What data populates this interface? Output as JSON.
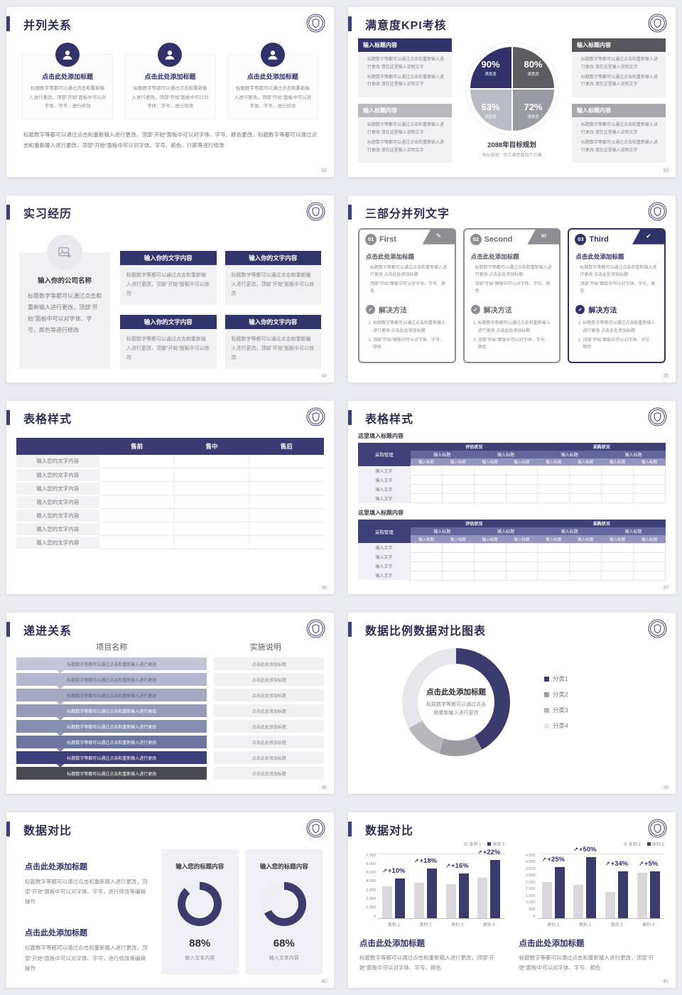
{
  "theme": {
    "navy": "#3b3b6e",
    "navy_dark": "#32326b",
    "title_color": "#2e2e55",
    "accent_bar": "#3f3f77",
    "bar_gray": "#d9d9dd",
    "donut_rest": "#ededf2",
    "page_bg": "#eaecf0",
    "card_bg": "#f1f1f4",
    "check_glyph": "✔",
    "arrow_glyph": "↗"
  },
  "slide32": {
    "title": "并列关系",
    "page": "32",
    "items": [
      {
        "icon": "person-headset-icon",
        "title": "点击此处添加标题",
        "body": "标题数字等都可以通过点击和重新输入进行更改，顶部“开始”面板中可以对字体、字号、进行修改"
      },
      {
        "icon": "person-icon",
        "title": "点击此处添加标题",
        "body": "标题数字等都可以通过点击和重新输入进行更改，顶部“开始”面板中可以对字体、字号、进行修改"
      },
      {
        "icon": "person-chat-icon",
        "title": "点击此处添加标题",
        "body": "标题数字等都可以通过点击和重新输入进行更改，顶部“开始”面板中可以对字体、字号、进行修改"
      }
    ],
    "footer": "标题数字等都可以通过点击和重新输入进行更改，顶部“开始”面板中可以对字体、字号、颜色更改，标题数字等都可以通过点击和重新输入进行更改，顶部“开始”面板中可以对字体、字号、颜色、行距等进行修改"
  },
  "slide33": {
    "title": "满意度KPI考核",
    "page": "33",
    "left_boxes": [
      {
        "header": "输入标题内容",
        "color": "#32326b",
        "bullets": [
          "标题数字等都可以通过点击和重新输入进行更改 请在这里输入说明文字",
          "标题数字等都可以通过点击和重新输入进行更改 请在这里输入说明文字"
        ]
      },
      {
        "header": "输入标题内容",
        "color": "#b9b9bf",
        "bullets": [
          "标题数字等都可以通过点击和重新输入进行更改 请在这里输入说明文字",
          "标题数字等都可以通过点击和重新输入进行更改 请在这里输入说明文字"
        ]
      }
    ],
    "right_boxes": [
      {
        "header": "输入标题内容",
        "color": "#58585c",
        "bullets": [
          "标题数字等都可以通过点击和重新输入进行更改 请在这里输入说明文字",
          "标题数字等都可以通过点击和重新输入进行更改 请在这里输入说明文字"
        ]
      },
      {
        "header": "输入标题内容",
        "color": "#a7a7ad",
        "bullets": [
          "标题数字等都可以通过点击和重新输入进行更改 请在这里输入说明文字",
          "标题数字等都可以通过点击和重新输入进行更改 请在这里输入说明文字"
        ]
      }
    ],
    "chart_data": {
      "type": "pie",
      "slices": [
        {
          "value": "90%",
          "label": "满意度",
          "pct": 25,
          "color": "#32326b"
        },
        {
          "value": "80%",
          "label": "满意度",
          "pct": 25,
          "color": "#5d5d61"
        },
        {
          "value": "63%",
          "label": "满意度",
          "pct": 25,
          "color": "#b9bcc4"
        },
        {
          "value": "72%",
          "label": "满意度",
          "pct": 25,
          "color": "#989ba4"
        }
      ]
    },
    "caption": "2088年目标规划",
    "subcaption": "目标规划：员工满意度四个方面"
  },
  "slide34": {
    "title": "实习经历",
    "page": "34",
    "company_title": "输入你的公司名称",
    "left_body": "标题数字等都可以通过点击和重新输入进行更改，顶部“开始”面板中可以对字体、字号、颜色等进行修改",
    "boxes": [
      {
        "header": "输入你的文字内容",
        "body": "标题数字等都可以通过点击和重新输入进行更改，顶部“开始”面板中可以修改"
      },
      {
        "header": "输入你的文字内容",
        "body": "标题数字等都可以通过点击和重新输入进行更改，顶部“开始”面板中可以修改"
      },
      {
        "header": "输入你的文字内容",
        "body": "标题数字等都可以通过点击和重新输入进行更改，顶部“开始”面板中可以修改"
      },
      {
        "header": "输入你的文字内容",
        "body": "标题数字等都可以通过点击和重新输入进行更改，顶部“开始”面板中可以修改"
      }
    ]
  },
  "slide35": {
    "title": "三部分并列文字",
    "page": "35",
    "cards": [
      {
        "num": "01",
        "name": "First",
        "glyph": "✎",
        "accent": "#8d8d93",
        "name_color": "#6b6b72",
        "heading_color": "#55555c",
        "heading": "点击此处添加标题",
        "b1": "标题数字等都可以通过点击和重新输入进行更改 点击此处添加标题",
        "b2": "顶部“开始”面板中可以对字体、字号、颜色",
        "solution": "解决方法",
        "n1": "标题数字等都可以通过点击和重新输入进行更改 点击此处添加标题",
        "n2": "顶部“开始”面板中可以对字体、字号、颜色"
      },
      {
        "num": "02",
        "name": "Second",
        "glyph": "✉",
        "accent": "#8d8d93",
        "name_color": "#6b6b72",
        "heading_color": "#55555c",
        "heading": "点击此处添加标题",
        "b1": "标题数字等都可以通过点击和重新输入进行更改 点击此处添加标题",
        "b2": "顶部“开始”面板中可以对字体、字号、颜色",
        "solution": "解决方法",
        "n1": "标题数字等都可以通过点击和重新输入进行更改 点击此处添加标题",
        "n2": "顶部“开始”面板中可以对字体、字号、颜色"
      },
      {
        "num": "03",
        "name": "Third",
        "glyph": "✔",
        "accent": "#32326b",
        "name_color": "#32326b",
        "heading_color": "#32326b",
        "heading": "点击此处添加标题",
        "b1": "标题数字等都可以通过点击和重新输入进行更改 点击此处添加标题",
        "b2": "顶部“开始”面板中可以对字体、字号、颜色",
        "solution": "解决方法",
        "n1": "标题数字等都可以通过点击和重新输入进行更改 点击此处添加标题",
        "n2": "顶部“开始”面板中可以对字体、字号、颜色"
      }
    ]
  },
  "slide36": {
    "title": "表格样式",
    "page": "36",
    "cols": [
      "售前",
      "售中",
      "售后"
    ],
    "rows": [
      "输入您的文字内容",
      "输入您的文字内容",
      "输入您的文字内容",
      "输入您的文字内容",
      "输入您的文字内容",
      "输入您的文字内容",
      "输入您的文字内容"
    ]
  },
  "slide37": {
    "title": "表格样式",
    "page": "37",
    "sections": [
      {
        "label": "这里填入标题内容"
      },
      {
        "label": "这里填入标题内容"
      }
    ],
    "corner": "采购管理",
    "groups": [
      "评估状况",
      "采购状况"
    ],
    "sub": "输入标题",
    "row_label": "输入文字"
  },
  "slide38": {
    "title": "递进关系",
    "page": "38",
    "col1": "项目名称",
    "col2": "实施说明",
    "rows": [
      {
        "text": "标题数字等都可以通过点击和重新输入进行更改",
        "note": "点击此处添加标题",
        "color": "#c2c5d7",
        "fg": "#63637a"
      },
      {
        "text": "标题数字等都可以通过点击和重新输入进行更改",
        "note": "点击此处添加标题",
        "color": "#b3b7cd",
        "fg": "#63637a"
      },
      {
        "text": "标题数字等都可以通过点击和重新输入进行更改",
        "note": "点击此处添加标题",
        "color": "#a4a9c2",
        "fg": "#5d5d74"
      },
      {
        "text": "标题数字等都可以通过点击和重新输入进行更改",
        "note": "点击此处添加标题",
        "color": "#959bb8",
        "fg": "#ffffff"
      },
      {
        "text": "标题数字等都可以通过点击和重新输入进行更改",
        "note": "点击此处添加标题",
        "color": "#868eb0",
        "fg": "#ffffff"
      },
      {
        "text": "标题数字等都可以通过点击和重新输入进行更改",
        "note": "点击此处添加标题",
        "color": "#6e75a1",
        "fg": "#ffffff"
      },
      {
        "text": "标题数字等都可以通过点击和重新输入进行更改",
        "note": "点击此处添加标题",
        "color": "#3c3f78",
        "fg": "#ffffff"
      },
      {
        "text": "标题数字等都可以通过点击和重新输入进行更改",
        "note": "点击此处添加标题",
        "color": "#494951",
        "fg": "#ffffff"
      }
    ]
  },
  "slide39": {
    "title": "数据比例数据对比图表",
    "page": "39",
    "center_title": "点击此处添加标题",
    "center_sub": "标题数字等都可以通过点击和重新输入进行更改",
    "chart_data": {
      "type": "donut",
      "slices": [
        {
          "label": "分类1",
          "pct": 42,
          "color": "#3b3b6e"
        },
        {
          "label": "分类2",
          "pct": 13,
          "color": "#9b9ba1"
        },
        {
          "label": "分类3",
          "pct": 12,
          "color": "#b7b7bd"
        },
        {
          "label": "分类4",
          "pct": 33,
          "color": "#e6e7ea"
        }
      ]
    }
  },
  "slide40": {
    "title": "数据对比",
    "page": "40",
    "blocks": [
      {
        "heading": "点击此处添加标题",
        "body": "标题数字等都可以通过点击和重新输入进行更改，顶部“开始”面板中可以对字体、字号，进行修改等编辑操作"
      },
      {
        "heading": "点击此处添加标题",
        "body": "标题数字等都可以通过点击和重新输入进行更改，顶部“开始”面板中可以对字体、字号，进行修改等编辑操作"
      }
    ],
    "cards": [
      {
        "title": "输入您的标题内容",
        "pct": 88,
        "value": "88%",
        "caption": "输入文本内容"
      },
      {
        "title": "输入您的标题内容",
        "pct": 68,
        "value": "68%",
        "caption": "输入文本内容"
      }
    ],
    "chart_data": {
      "type": "donut",
      "values": [
        88,
        68
      ]
    }
  },
  "slide41": {
    "title": "数据对比",
    "page": "41",
    "series": [
      "系列 1",
      "系列 2"
    ],
    "heading": "点击此处添加标题",
    "body": "标题数字等都可以通过点击和重新输入进行更改，顶部“开始”面板中可以对字体、字号、颜色",
    "chart_a": {
      "type": "bar",
      "categories": [
        "类别 1",
        "类别 2",
        "类别 3",
        "类别 4"
      ],
      "series": [
        {
          "name": "系列 1",
          "values": [
            3400,
            3800,
            3650,
            4300
          ]
        },
        {
          "name": "系列 2",
          "values": [
            4200,
            5300,
            4800,
            6200
          ]
        }
      ],
      "annotations": [
        "+10%",
        "+18%",
        "+16%",
        "+22%"
      ],
      "ymax": 7000,
      "ystep": 1000
    },
    "chart_b": {
      "type": "bar",
      "categories": [
        "类别 1",
        "类别 2",
        "类别 3",
        "类别 4"
      ],
      "series": [
        {
          "name": "系列 1",
          "values": [
            2500,
            2300,
            1800,
            3100
          ]
        },
        {
          "name": "系列 2",
          "values": [
            3500,
            4200,
            3200,
            3200
          ]
        }
      ],
      "annotations": [
        "+25%",
        "+50%",
        "+34%",
        "+5%"
      ],
      "ymax": 4500,
      "ystep": 500
    }
  }
}
